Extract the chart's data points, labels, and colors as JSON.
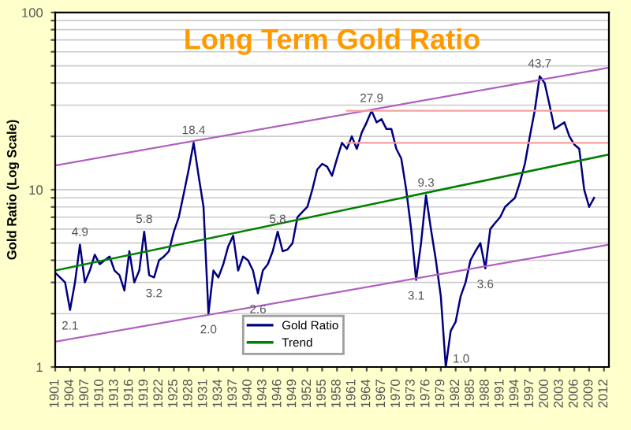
{
  "chart_data": {
    "type": "line",
    "title": "Long Term Gold Ratio",
    "ylabel": "Gold Ratio (Log Scale)",
    "log": "y",
    "grid": "y",
    "legend": "bottom",
    "marker": "none",
    "line_style": "solid",
    "xlim": [
      1901,
      2013
    ],
    "xticks": [
      1901,
      1904,
      1907,
      1910,
      1913,
      1916,
      1919,
      1922,
      1925,
      1928,
      1931,
      1934,
      1937,
      1940,
      1943,
      1946,
      1949,
      1952,
      1955,
      1958,
      1961,
      1964,
      1967,
      1970,
      1973,
      1976,
      1979,
      1982,
      1985,
      1988,
      1991,
      1994,
      1997,
      2000,
      2003,
      2006,
      2009,
      2012
    ],
    "ylim": [
      1,
      100
    ],
    "yticks": [
      1,
      {
        "value": 2,
        "label": null
      },
      {
        "value": 3,
        "label": null
      },
      {
        "value": 4,
        "label": null
      },
      {
        "value": 5,
        "label": null
      },
      {
        "value": 6,
        "label": null
      },
      {
        "value": 7,
        "label": null
      },
      {
        "value": 8,
        "label": null
      },
      {
        "value": 9,
        "label": null
      },
      10,
      {
        "value": 20,
        "label": null
      },
      {
        "value": 30,
        "label": null
      },
      {
        "value": 40,
        "label": null
      },
      {
        "value": 50,
        "label": null
      },
      {
        "value": 60,
        "label": null
      },
      {
        "value": 70,
        "label": null
      },
      {
        "value": 80,
        "label": null
      },
      {
        "value": 90,
        "label": null
      },
      100
    ],
    "series": [
      {
        "name": "Gold Ratio",
        "color": "#000080",
        "x": [
          1901,
          1902,
          1903,
          1904,
          1905,
          1906,
          1907,
          1908,
          1909,
          1910,
          1911,
          1912,
          1913,
          1914,
          1915,
          1916,
          1917,
          1918,
          1919,
          1920,
          1921,
          1922,
          1923,
          1924,
          1925,
          1926,
          1927,
          1928,
          1929,
          1930,
          1931,
          1932,
          1933,
          1934,
          1935,
          1936,
          1937,
          1938,
          1939,
          1940,
          1941,
          1942,
          1943,
          1944,
          1945,
          1946,
          1947,
          1948,
          1949,
          1950,
          1951,
          1952,
          1953,
          1954,
          1955,
          1956,
          1957,
          1958,
          1959,
          1960,
          1961,
          1962,
          1963,
          1964,
          1965,
          1966,
          1967,
          1968,
          1969,
          1970,
          1971,
          1972,
          1973,
          1974,
          1975,
          1976,
          1977,
          1978,
          1979,
          1980,
          1981,
          1982,
          1983,
          1984,
          1985,
          1986,
          1987,
          1988,
          1989,
          1990,
          1991,
          1992,
          1993,
          1994,
          1995,
          1996,
          1997,
          1998,
          1999,
          2000,
          2001,
          2002,
          2003,
          2004,
          2005,
          2006,
          2007,
          2008,
          2009,
          2010
        ],
        "values": [
          3.4,
          3.2,
          3.0,
          2.1,
          3.0,
          4.9,
          3.0,
          3.5,
          4.3,
          3.8,
          4.0,
          4.2,
          3.5,
          3.3,
          2.7,
          4.5,
          3.0,
          3.5,
          5.8,
          3.3,
          3.2,
          4.0,
          4.2,
          4.5,
          5.8,
          7,
          9.5,
          13,
          18.4,
          12,
          8,
          2.0,
          3.5,
          3.2,
          3.8,
          4.8,
          5.5,
          3.5,
          4.2,
          4.0,
          3.5,
          2.6,
          3.5,
          3.8,
          4.5,
          5.8,
          4.5,
          4.6,
          5.0,
          7,
          7.5,
          8,
          10,
          13,
          14,
          13.5,
          12,
          15,
          18.4,
          17,
          20,
          17,
          21,
          24,
          27.9,
          24,
          25,
          22,
          22,
          17,
          15,
          10,
          6,
          3.1,
          5,
          9.3,
          6,
          4,
          2.5,
          1.0,
          1.6,
          1.8,
          2.5,
          3,
          4,
          4.5,
          5,
          3.6,
          6,
          6.5,
          7,
          8,
          8.5,
          9,
          11,
          14,
          20,
          28,
          43.7,
          40,
          30,
          22,
          23,
          24,
          20,
          18,
          17,
          10,
          8,
          9
        ]
      },
      {
        "name": "Trend",
        "color": "#008000",
        "x": [
          1901,
          2013
        ],
        "values": [
          3.5,
          15.8
        ]
      },
      {
        "color": "#b060c0",
        "x": [
          1901,
          2013
        ],
        "values": [
          13.7,
          48.8
        ]
      },
      {
        "color": "#b060c0",
        "x": [
          1901,
          2013
        ],
        "values": [
          1.39,
          4.9
        ]
      },
      {
        "color": "#f4a0a0",
        "x": [
          1960,
          2013
        ],
        "values": [
          27.9,
          27.9
        ]
      },
      {
        "color": "#f4a0a0",
        "x": [
          1960,
          2013
        ],
        "values": [
          18.4,
          18.4
        ]
      }
    ],
    "annotations": [
      {
        "text": "2.1",
        "x": 1904,
        "y": 2.1
      },
      {
        "text": "4.9",
        "x": 1906,
        "y": 4.9
      },
      {
        "text": "5.8",
        "x": 1919,
        "y": 5.8
      },
      {
        "text": "3.2",
        "x": 1921,
        "y": 3.2
      },
      {
        "text": "18.4",
        "x": 1929,
        "y": 18.4
      },
      {
        "text": "2.0",
        "x": 1932,
        "y": 2.0
      },
      {
        "text": "5.8",
        "x": 1946,
        "y": 5.8
      },
      {
        "text": "2.6",
        "x": 1942,
        "y": 2.6
      },
      {
        "text": "27.9",
        "x": 1965,
        "y": 27.9
      },
      {
        "text": "9.3",
        "x": 1976,
        "y": 9.3
      },
      {
        "text": "3.1",
        "x": 1974,
        "y": 3.1
      },
      {
        "text": "1.0",
        "x": 1980,
        "y": 1.0
      },
      {
        "text": "3.6",
        "x": 1988,
        "y": 3.6
      },
      {
        "text": "43.7",
        "x": 1999,
        "y": 43.7
      }
    ]
  }
}
